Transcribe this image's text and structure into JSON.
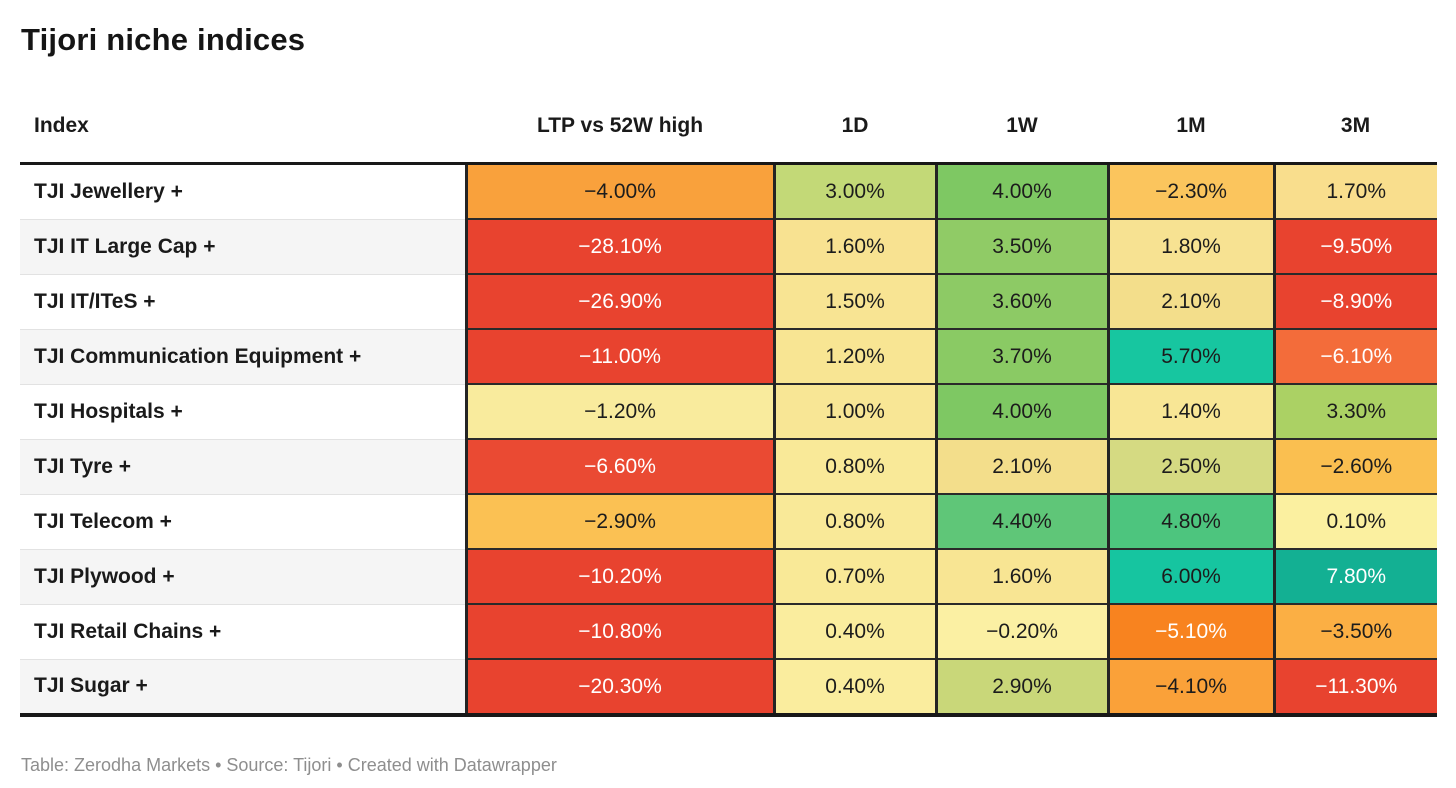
{
  "colors": {
    "header_rule": "#181818",
    "grid_dark": "#242424",
    "row_alt_bg": "#f5f5f5",
    "row_separator": "#e2e2e2",
    "text_dark": "#1c1c1c",
    "text_light": "#ffffff",
    "footer_text": "#8e8e8e"
  },
  "chart_data": {
    "type": "table",
    "title": "Tijori niche indices",
    "footnote": "Table: Zerodha Markets • Source: Tijori • Created with Datawrapper",
    "columns": [
      "Index",
      "LTP vs 52W high",
      "1D",
      "1W",
      "1M",
      "3M"
    ],
    "rows": [
      {
        "label": "TJI Jewellery +",
        "cells": [
          {
            "value": "−4.00%",
            "bg": "#F9A13C",
            "text": "dark"
          },
          {
            "value": "3.00%",
            "bg": "#C3D977",
            "text": "dark"
          },
          {
            "value": "4.00%",
            "bg": "#7EC863",
            "text": "dark"
          },
          {
            "value": "−2.30%",
            "bg": "#FBC55D",
            "text": "dark"
          },
          {
            "value": "1.70%",
            "bg": "#F9DE8D",
            "text": "dark"
          }
        ]
      },
      {
        "label": "TJI IT Large Cap +",
        "cells": [
          {
            "value": "−28.10%",
            "bg": "#E8432F",
            "text": "light"
          },
          {
            "value": "1.60%",
            "bg": "#F8E291",
            "text": "dark"
          },
          {
            "value": "3.50%",
            "bg": "#90CB66",
            "text": "dark"
          },
          {
            "value": "1.80%",
            "bg": "#F7E292",
            "text": "dark"
          },
          {
            "value": "−9.50%",
            "bg": "#E8432F",
            "text": "light"
          }
        ]
      },
      {
        "label": "TJI IT/ITeS +",
        "cells": [
          {
            "value": "−26.90%",
            "bg": "#E8432F",
            "text": "light"
          },
          {
            "value": "1.50%",
            "bg": "#F8E493",
            "text": "dark"
          },
          {
            "value": "3.60%",
            "bg": "#8DCA65",
            "text": "dark"
          },
          {
            "value": "2.10%",
            "bg": "#F3DE8B",
            "text": "dark"
          },
          {
            "value": "−8.90%",
            "bg": "#E8432F",
            "text": "light"
          }
        ]
      },
      {
        "label": "TJI Communication Equipment +",
        "cells": [
          {
            "value": "−11.00%",
            "bg": "#E8432F",
            "text": "light"
          },
          {
            "value": "1.20%",
            "bg": "#F8E593",
            "text": "dark"
          },
          {
            "value": "3.70%",
            "bg": "#8ACA64",
            "text": "dark"
          },
          {
            "value": "5.70%",
            "bg": "#17C6A0",
            "text": "dark"
          },
          {
            "value": "−6.10%",
            "bg": "#F36C3A",
            "text": "light"
          }
        ]
      },
      {
        "label": "TJI Hospitals +",
        "cells": [
          {
            "value": "−1.20%",
            "bg": "#F9EB9D",
            "text": "dark"
          },
          {
            "value": "1.00%",
            "bg": "#F8E695",
            "text": "dark"
          },
          {
            "value": "4.00%",
            "bg": "#7EC863",
            "text": "dark"
          },
          {
            "value": "1.40%",
            "bg": "#F8E695",
            "text": "dark"
          },
          {
            "value": "3.30%",
            "bg": "#ABD164",
            "text": "dark"
          }
        ]
      },
      {
        "label": "TJI Tyre +",
        "cells": [
          {
            "value": "−6.60%",
            "bg": "#EA4A33",
            "text": "light"
          },
          {
            "value": "0.80%",
            "bg": "#F9E998",
            "text": "dark"
          },
          {
            "value": "2.10%",
            "bg": "#F3DE8B",
            "text": "dark"
          },
          {
            "value": "2.50%",
            "bg": "#D5DA82",
            "text": "dark"
          },
          {
            "value": "−2.60%",
            "bg": "#FABF50",
            "text": "dark"
          }
        ]
      },
      {
        "label": "TJI Telecom +",
        "cells": [
          {
            "value": "−2.90%",
            "bg": "#FBC153",
            "text": "dark"
          },
          {
            "value": "0.80%",
            "bg": "#F9E998",
            "text": "dark"
          },
          {
            "value": "4.40%",
            "bg": "#5FC678",
            "text": "dark"
          },
          {
            "value": "4.80%",
            "bg": "#4DC57E",
            "text": "dark"
          },
          {
            "value": "0.10%",
            "bg": "#FBF0A0",
            "text": "dark"
          }
        ]
      },
      {
        "label": "TJI Plywood +",
        "cells": [
          {
            "value": "−10.20%",
            "bg": "#E8432F",
            "text": "light"
          },
          {
            "value": "0.70%",
            "bg": "#F9E997",
            "text": "dark"
          },
          {
            "value": "1.60%",
            "bg": "#F8E593",
            "text": "dark"
          },
          {
            "value": "6.00%",
            "bg": "#16C5A0",
            "text": "dark"
          },
          {
            "value": "7.80%",
            "bg": "#13B093",
            "text": "light"
          }
        ]
      },
      {
        "label": "TJI Retail Chains +",
        "cells": [
          {
            "value": "−10.80%",
            "bg": "#E8432F",
            "text": "light"
          },
          {
            "value": "0.40%",
            "bg": "#FAED9E",
            "text": "dark"
          },
          {
            "value": "−0.20%",
            "bg": "#FBF0A3",
            "text": "dark"
          },
          {
            "value": "−5.10%",
            "bg": "#F8831F",
            "text": "light"
          },
          {
            "value": "−3.50%",
            "bg": "#FBAF44",
            "text": "dark"
          }
        ]
      },
      {
        "label": "TJI Sugar +",
        "cells": [
          {
            "value": "−20.30%",
            "bg": "#E8432F",
            "text": "light"
          },
          {
            "value": "0.40%",
            "bg": "#FAED9E",
            "text": "dark"
          },
          {
            "value": "2.90%",
            "bg": "#C9D779",
            "text": "dark"
          },
          {
            "value": "−4.10%",
            "bg": "#FAA139",
            "text": "dark"
          },
          {
            "value": "−11.30%",
            "bg": "#E8432F",
            "text": "light"
          }
        ]
      }
    ]
  }
}
